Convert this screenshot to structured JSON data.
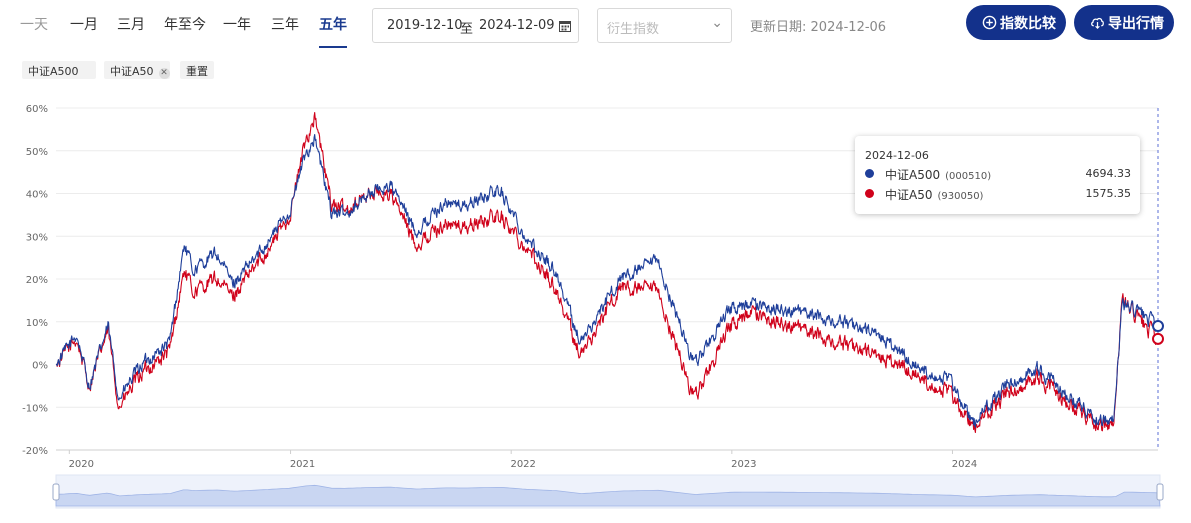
{
  "toolbar": {
    "ranges": [
      {
        "label": "一天",
        "state": "disabled"
      },
      {
        "label": "一月",
        "state": "normal"
      },
      {
        "label": "三月",
        "state": "normal"
      },
      {
        "label": "年至今",
        "state": "normal"
      },
      {
        "label": "一年",
        "state": "normal"
      },
      {
        "label": "三年",
        "state": "normal"
      },
      {
        "label": "五年",
        "state": "active"
      }
    ],
    "date_start": "2019-12-10",
    "date_sep": "至",
    "date_end": "2024-12-09",
    "derivative_placeholder": "衍生指数",
    "update_label": "更新日期:",
    "update_date": "2024-12-06",
    "compare_label": "指数比较",
    "export_label": "导出行情"
  },
  "chips": [
    {
      "label": "中证A500",
      "removable": false
    },
    {
      "label": "中证A50",
      "removable": true
    },
    {
      "label": "重置",
      "removable": false
    }
  ],
  "tooltip": {
    "date": "2024-12-06",
    "rows": [
      {
        "name": "中证A500",
        "code": "(000510)",
        "value": "4694.33",
        "color": "#1f3f9a"
      },
      {
        "name": "中证A50",
        "code": "(930050)",
        "value": "1575.35",
        "color": "#d0021b"
      }
    ]
  },
  "chart_data": {
    "type": "line",
    "y_unit": "%",
    "ylim": [
      -20,
      60
    ],
    "yticks": [
      "-20%",
      "-10%",
      "0%",
      "10%",
      "20%",
      "30%",
      "40%",
      "50%",
      "60%"
    ],
    "xlim": [
      "2019-12-10",
      "2024-12-06"
    ],
    "xticks": [
      "2020",
      "2021",
      "2022",
      "2023",
      "2024"
    ],
    "grid": true,
    "series": [
      {
        "name": "中证A500 (000510)",
        "color": "#1f3f9a",
        "points": [
          [
            "2019-12-10",
            0
          ],
          [
            "2020-01-13",
            7
          ],
          [
            "2020-02-03",
            -5
          ],
          [
            "2020-03-05",
            9
          ],
          [
            "2020-03-23",
            -8
          ],
          [
            "2020-04-30",
            0
          ],
          [
            "2020-06-15",
            5
          ],
          [
            "2020-07-09",
            28
          ],
          [
            "2020-07-24",
            22
          ],
          [
            "2020-08-31",
            26
          ],
          [
            "2020-09-28",
            19
          ],
          [
            "2020-10-30",
            24
          ],
          [
            "2020-11-30",
            30
          ],
          [
            "2020-12-31",
            36
          ],
          [
            "2021-01-25",
            49
          ],
          [
            "2021-02-10",
            53
          ],
          [
            "2021-03-09",
            36
          ],
          [
            "2021-03-31",
            35
          ],
          [
            "2021-05-10",
            40
          ],
          [
            "2021-06-15",
            42
          ],
          [
            "2021-07-28",
            31
          ],
          [
            "2021-09-13",
            38
          ],
          [
            "2021-10-15",
            37
          ],
          [
            "2021-12-13",
            41
          ],
          [
            "2022-01-28",
            29
          ],
          [
            "2022-03-15",
            22
          ],
          [
            "2022-04-26",
            5
          ],
          [
            "2022-06-30",
            20
          ],
          [
            "2022-08-31",
            24
          ],
          [
            "2022-10-31",
            0
          ],
          [
            "2022-12-30",
            13
          ],
          [
            "2023-01-30",
            14
          ],
          [
            "2023-04-28",
            12
          ],
          [
            "2023-06-30",
            10
          ],
          [
            "2023-08-31",
            7
          ],
          [
            "2023-10-30",
            0
          ],
          [
            "2023-12-29",
            -4
          ],
          [
            "2024-02-05",
            -14
          ],
          [
            "2024-03-29",
            -5
          ],
          [
            "2024-05-20",
            -1
          ],
          [
            "2024-08-30",
            -13
          ],
          [
            "2024-09-23",
            -13
          ],
          [
            "2024-10-08",
            14
          ],
          [
            "2024-11-08",
            12
          ],
          [
            "2024-12-06",
            9
          ]
        ]
      },
      {
        "name": "中证A50 (930050)",
        "color": "#d0021b",
        "points": [
          [
            "2019-12-10",
            0
          ],
          [
            "2020-01-13",
            6
          ],
          [
            "2020-02-03",
            -5
          ],
          [
            "2020-03-05",
            8
          ],
          [
            "2020-03-23",
            -10
          ],
          [
            "2020-04-30",
            -2
          ],
          [
            "2020-06-15",
            3
          ],
          [
            "2020-07-09",
            22
          ],
          [
            "2020-07-24",
            17
          ],
          [
            "2020-08-31",
            20
          ],
          [
            "2020-09-28",
            16
          ],
          [
            "2020-10-30",
            22
          ],
          [
            "2020-11-30",
            28
          ],
          [
            "2020-12-31",
            35
          ],
          [
            "2021-01-25",
            52
          ],
          [
            "2021-02-10",
            58
          ],
          [
            "2021-03-09",
            38
          ],
          [
            "2021-03-31",
            36
          ],
          [
            "2021-05-10",
            40
          ],
          [
            "2021-06-15",
            40
          ],
          [
            "2021-07-28",
            28
          ],
          [
            "2021-09-13",
            33
          ],
          [
            "2021-10-15",
            32
          ],
          [
            "2021-12-13",
            35
          ],
          [
            "2022-01-28",
            27
          ],
          [
            "2022-03-15",
            18
          ],
          [
            "2022-04-26",
            2
          ],
          [
            "2022-06-30",
            18
          ],
          [
            "2022-08-31",
            17
          ],
          [
            "2022-10-31",
            -8
          ],
          [
            "2022-12-30",
            9
          ],
          [
            "2023-01-30",
            12
          ],
          [
            "2023-04-28",
            8
          ],
          [
            "2023-06-30",
            5
          ],
          [
            "2023-08-31",
            2
          ],
          [
            "2023-10-30",
            -2
          ],
          [
            "2023-12-29",
            -7
          ],
          [
            "2024-02-05",
            -15
          ],
          [
            "2024-03-29",
            -7
          ],
          [
            "2024-05-20",
            -3
          ],
          [
            "2024-08-30",
            -14
          ],
          [
            "2024-09-23",
            -14
          ],
          [
            "2024-10-08",
            15
          ],
          [
            "2024-11-08",
            10
          ],
          [
            "2024-12-06",
            6
          ]
        ]
      }
    ]
  }
}
